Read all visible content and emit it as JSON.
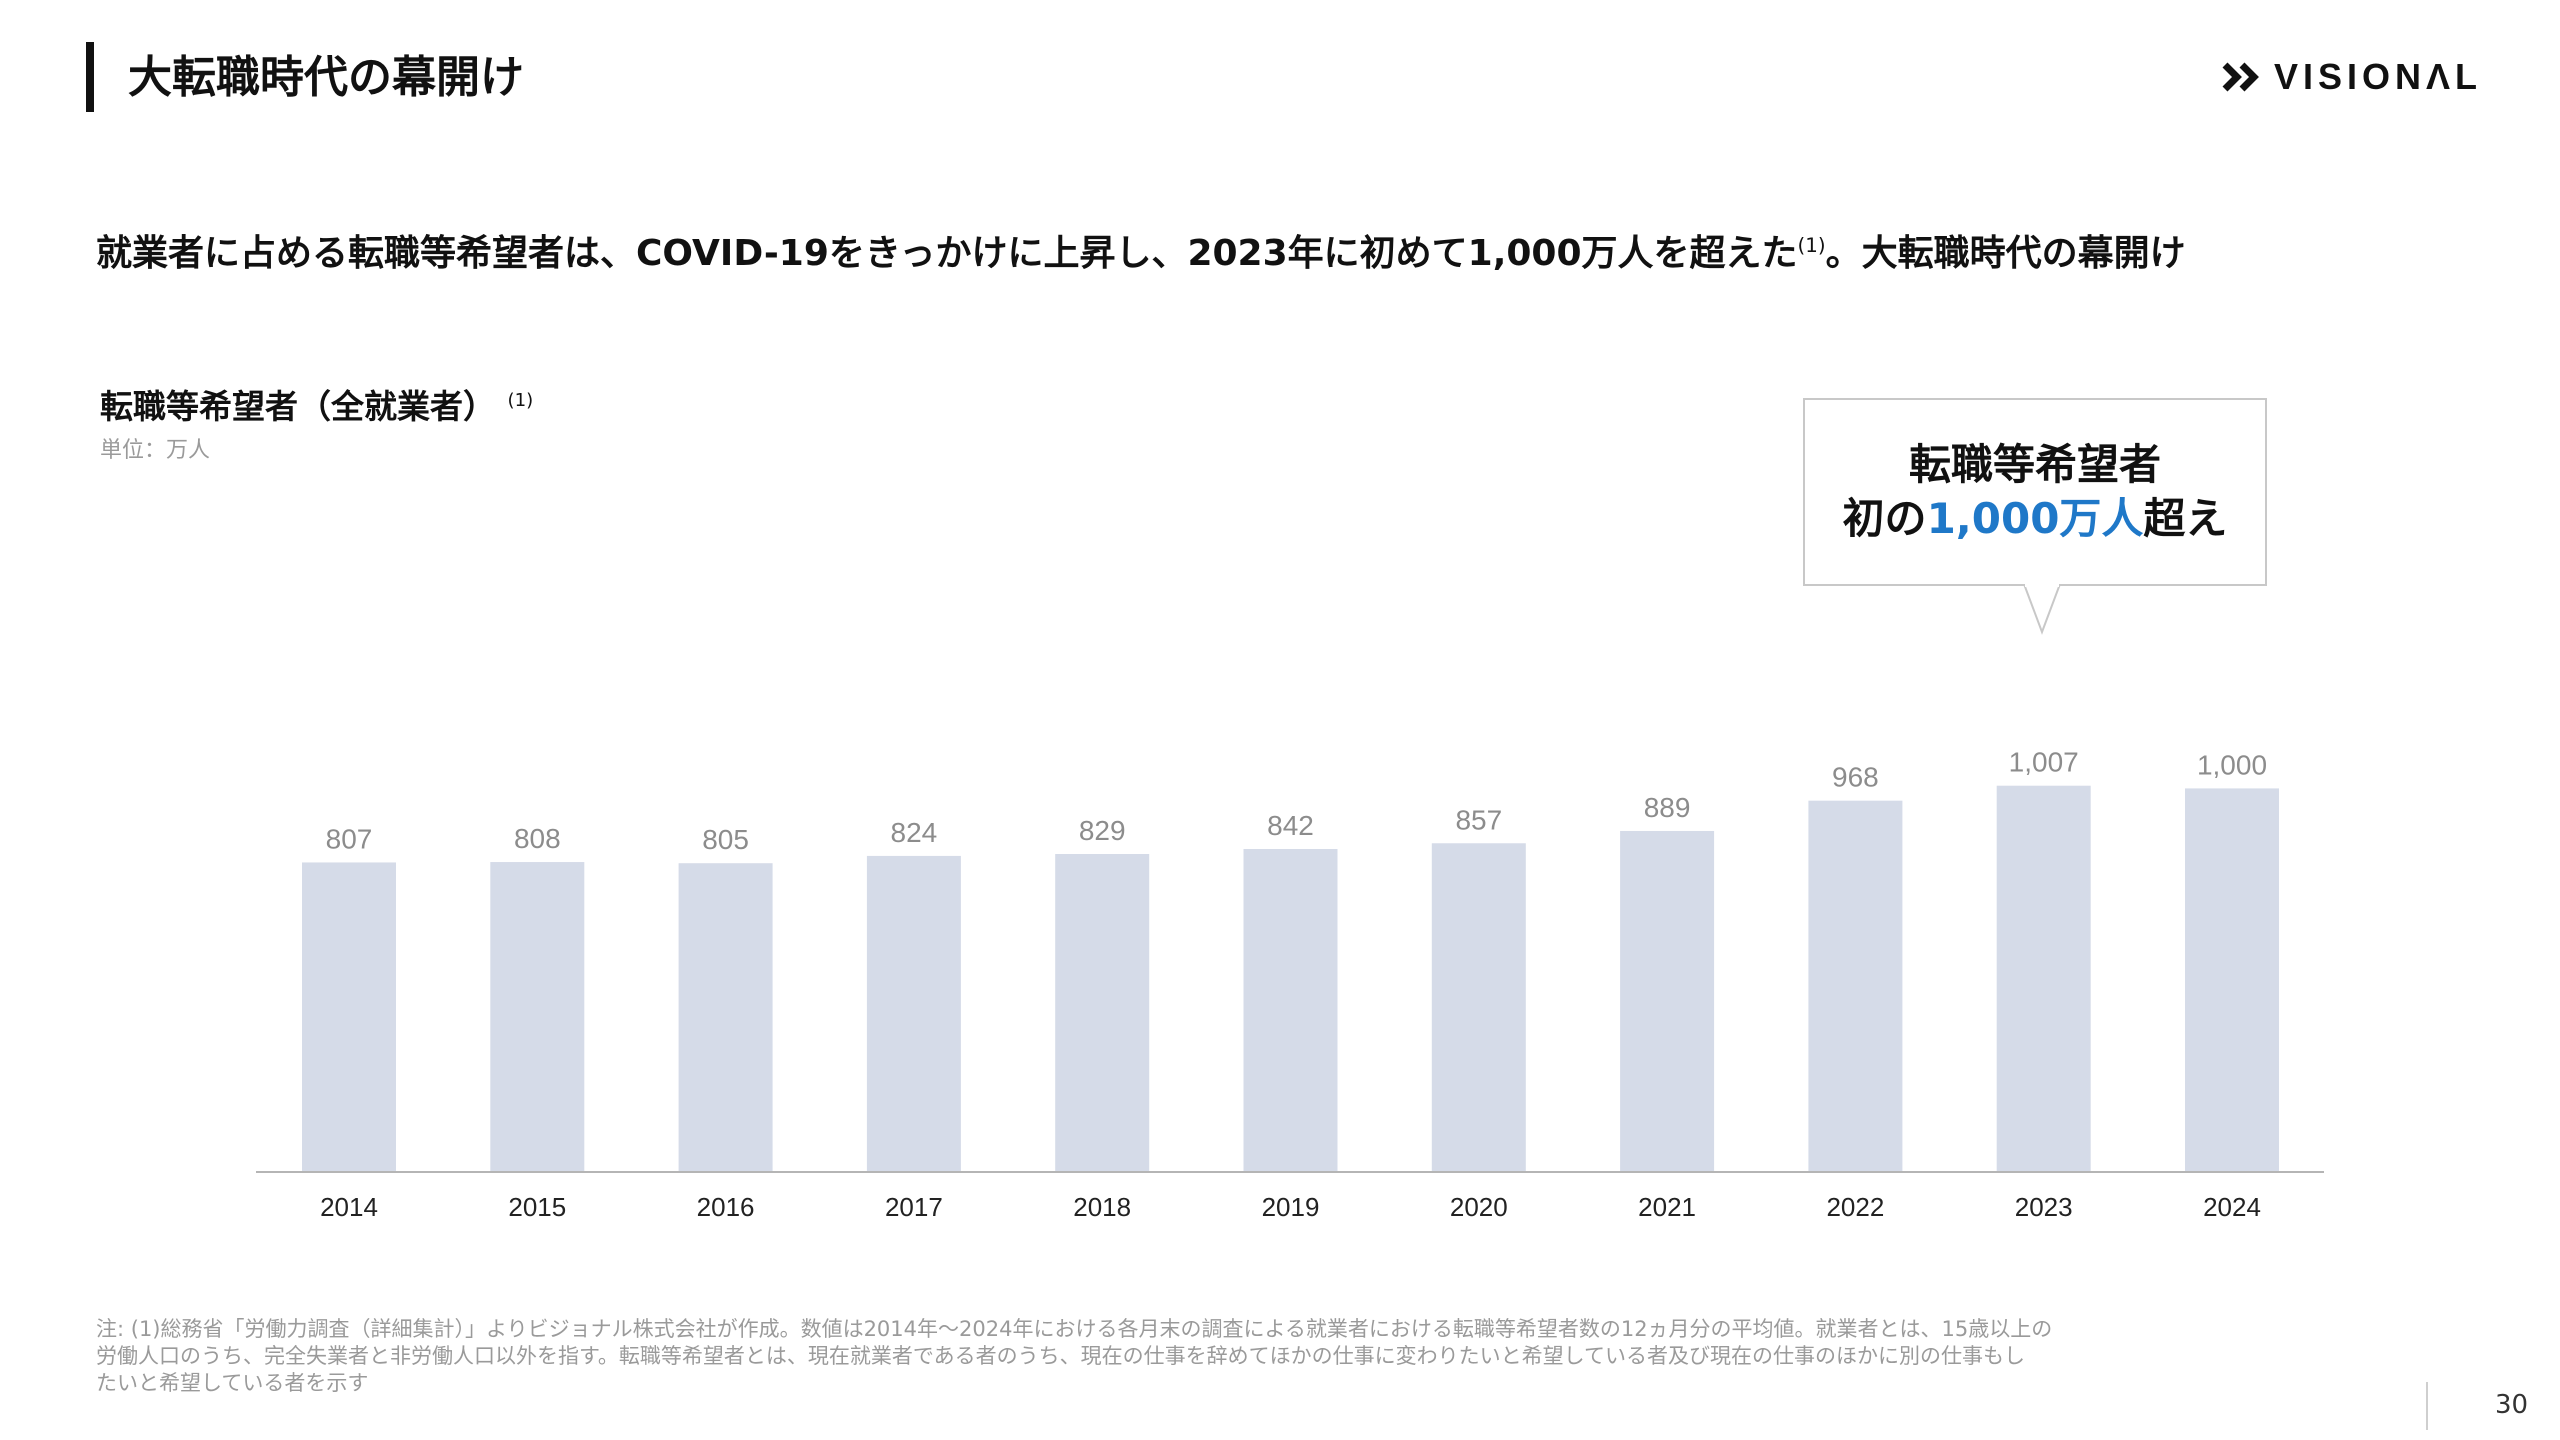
{
  "slide": {
    "title": "大転職時代の幕開け",
    "headline": "就業者に占める転職等希望者は、COVID-19をきっかけに上昇し、2023年に初めて1,000万人を超えた",
    "headline_note": "(1)",
    "headline_tail": "。大転職時代の幕開け",
    "page_number": "30"
  },
  "logo": {
    "text": "VISIONΛL",
    "icon": "double-chevron-icon"
  },
  "callout": {
    "line1": "転職等希望者",
    "line2_prefix": "初の",
    "line2_accent": "1,000万人",
    "line2_suffix": "超え",
    "accent_color": "#1f78c8"
  },
  "chart_data": {
    "type": "bar",
    "title": "転職等希望者（全就業者）",
    "title_note": "(1)",
    "unit": "単位：万人",
    "categories": [
      "2014",
      "2015",
      "2016",
      "2017",
      "2018",
      "2019",
      "2020",
      "2021",
      "2022",
      "2023",
      "2024"
    ],
    "values": [
      807,
      808,
      805,
      824,
      829,
      842,
      857,
      889,
      968,
      1007,
      1000
    ],
    "value_labels": [
      "807",
      "808",
      "805",
      "824",
      "829",
      "842",
      "857",
      "889",
      "968",
      "1,007",
      "1,000"
    ],
    "bar_color": "#d5dbe8",
    "label_color": "#8c8c8c",
    "grid": false
  },
  "footnote": {
    "line1": "注: (1)総務省「労働力調査（詳細集計）」よりビジョナル株式会社が作成。数値は2014年〜2024年における各月末の調査による就業者における転職等希望者数の12ヵ月分の平均値。就業者とは、15歳以上の",
    "line2": "労働人口のうち、完全失業者と非労働人口以外を指す。転職等希望者とは、現在就業者である者のうち、現在の仕事を辞めてほかの仕事に変わりたいと希望している者及び現在の仕事のほかに別の仕事もし",
    "line3": "たいと希望している者を示す"
  }
}
